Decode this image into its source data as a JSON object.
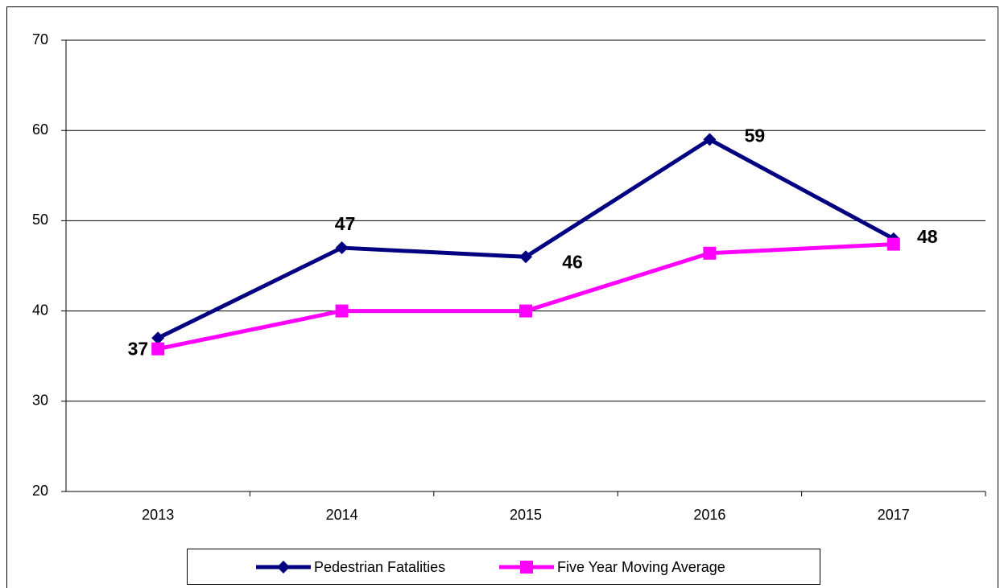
{
  "chart_data": {
    "type": "line",
    "categories": [
      "2013",
      "2014",
      "2015",
      "2016",
      "2017"
    ],
    "series": [
      {
        "name": "Pedestrian Fatalities",
        "color": "#000080",
        "values": [
          37,
          47,
          46,
          59,
          48
        ]
      },
      {
        "name": "Five Year  Moving Average",
        "color": "#ff00ff",
        "values": [
          35.8,
          40,
          40,
          46.4,
          47.4
        ]
      }
    ],
    "ylim": [
      20,
      70
    ],
    "yticks": [
      20,
      30,
      40,
      50,
      60,
      70
    ],
    "grid": true,
    "legend": "bottom"
  }
}
